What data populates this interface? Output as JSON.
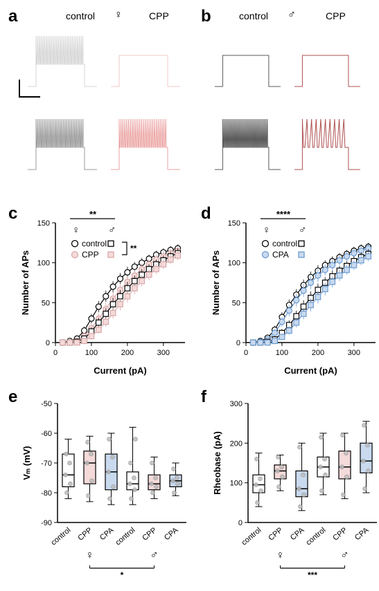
{
  "panels": {
    "a": {
      "label": "a",
      "control_text": "control",
      "cpp_text": "CPP",
      "sex_symbol": "♀"
    },
    "b": {
      "label": "b",
      "control_text": "control",
      "cpp_text": "CPP",
      "sex_symbol": "♂"
    },
    "c": {
      "label": "c",
      "sex_female": "♀",
      "sex_male": "♂",
      "legend_control": "control",
      "legend_cpp": "CPP",
      "sig_top": "**",
      "sig_bracket": "**",
      "xlabel": "Current (pA)",
      "ylabel": "Number of APs",
      "xlim": [
        0,
        360
      ],
      "ylim": [
        0,
        150
      ],
      "xticks": [
        0,
        100,
        200,
        300
      ],
      "yticks": [
        0,
        50,
        100,
        150
      ],
      "x": [
        20,
        40,
        60,
        80,
        100,
        120,
        140,
        160,
        180,
        200,
        220,
        240,
        260,
        280,
        300,
        320,
        340
      ],
      "series": {
        "f_ctrl": {
          "y": [
            0,
            2,
            5,
            15,
            30,
            45,
            58,
            70,
            80,
            88,
            95,
            100,
            105,
            110,
            113,
            116,
            118
          ],
          "err": [
            0,
            1,
            2,
            5,
            6,
            7,
            7,
            7,
            7,
            7,
            6,
            6,
            5,
            5,
            5,
            5,
            5
          ],
          "color": "#000000",
          "fill": "#ffffff",
          "marker": "circle"
        },
        "f_cpp": {
          "y": [
            0,
            0,
            2,
            8,
            18,
            30,
            42,
            55,
            66,
            76,
            84,
            92,
            98,
            104,
            108,
            112,
            115
          ],
          "err": [
            0,
            0,
            1,
            4,
            6,
            7,
            8,
            8,
            8,
            8,
            7,
            7,
            6,
            6,
            6,
            5,
            5
          ],
          "color": "#d8a8a8",
          "fill": "#f5dada",
          "marker": "circle"
        },
        "m_ctrl": {
          "y": [
            0,
            0,
            1,
            5,
            14,
            25,
            36,
            48,
            58,
            68,
            77,
            85,
            92,
            98,
            103,
            108,
            112
          ],
          "err": [
            0,
            0,
            1,
            3,
            5,
            6,
            7,
            8,
            8,
            8,
            7,
            7,
            6,
            6,
            6,
            6,
            6
          ],
          "color": "#000000",
          "fill": "#ffffff",
          "marker": "square"
        },
        "m_cpp": {
          "y": [
            0,
            0,
            0,
            2,
            8,
            16,
            26,
            37,
            48,
            58,
            68,
            77,
            85,
            92,
            98,
            104,
            109
          ],
          "err": [
            0,
            0,
            0,
            2,
            4,
            5,
            6,
            7,
            8,
            8,
            8,
            7,
            7,
            6,
            6,
            6,
            6
          ],
          "color": "#d8a8a8",
          "fill": "#f5dada",
          "marker": "square"
        }
      }
    },
    "d": {
      "label": "d",
      "sex_female": "♀",
      "sex_male": "♂",
      "legend_control": "control",
      "legend_cpa": "CPA",
      "sig_top": "****",
      "xlabel": "Current (pA)",
      "ylabel": "Number of APs",
      "xlim": [
        0,
        360
      ],
      "ylim": [
        0,
        150
      ],
      "xticks": [
        0,
        100,
        200,
        300
      ],
      "yticks": [
        0,
        50,
        100,
        150
      ],
      "x": [
        20,
        40,
        60,
        80,
        100,
        120,
        140,
        160,
        180,
        200,
        220,
        240,
        260,
        280,
        300,
        320,
        340
      ],
      "series": {
        "f_ctrl": {
          "y": [
            0,
            2,
            6,
            16,
            32,
            47,
            60,
            72,
            82,
            90,
            97,
            102,
            107,
            111,
            115,
            118,
            120
          ],
          "err": [
            0,
            1,
            2,
            5,
            6,
            7,
            7,
            7,
            7,
            7,
            6,
            6,
            5,
            5,
            5,
            5,
            5
          ],
          "color": "#000000",
          "fill": "#ffffff",
          "marker": "circle"
        },
        "f_cpa": {
          "y": [
            0,
            1,
            4,
            12,
            26,
            40,
            53,
            65,
            75,
            84,
            91,
            97,
            103,
            108,
            112,
            115,
            118
          ],
          "err": [
            0,
            1,
            2,
            5,
            6,
            7,
            8,
            8,
            8,
            8,
            7,
            7,
            6,
            6,
            6,
            5,
            5
          ],
          "color": "#6b9bd1",
          "fill": "#c9daef",
          "marker": "circle"
        },
        "m_ctrl": {
          "y": [
            0,
            0,
            1,
            4,
            12,
            22,
            33,
            45,
            56,
            66,
            75,
            83,
            90,
            96,
            102,
            107,
            111
          ],
          "err": [
            0,
            0,
            1,
            3,
            5,
            6,
            7,
            8,
            8,
            8,
            7,
            7,
            6,
            6,
            6,
            6,
            6
          ],
          "color": "#000000",
          "fill": "#ffffff",
          "marker": "square"
        },
        "m_cpa": {
          "y": [
            0,
            0,
            0,
            2,
            7,
            15,
            25,
            36,
            47,
            57,
            67,
            76,
            84,
            91,
            97,
            103,
            108
          ],
          "err": [
            0,
            0,
            0,
            2,
            4,
            5,
            6,
            7,
            8,
            8,
            8,
            7,
            7,
            6,
            6,
            6,
            6
          ],
          "color": "#6b9bd1",
          "fill": "#c9daef",
          "marker": "square"
        }
      }
    },
    "e": {
      "label": "e",
      "ylabel": "Vₘ (mV)",
      "ylim": [
        -90,
        -50
      ],
      "yticks": [
        -90,
        -80,
        -70,
        -60,
        -50
      ],
      "groups": [
        "control",
        "CPP",
        "CPA",
        "control",
        "CPP",
        "CPA"
      ],
      "sex_female": "♀",
      "sex_male": "♂",
      "sig": "*",
      "boxes": [
        {
          "min": -82,
          "q1": -78,
          "med": -74,
          "q3": -67,
          "max": -62,
          "color": "#ffffff",
          "pts": [
            -80,
            -77,
            -74,
            -70,
            -67
          ]
        },
        {
          "min": -83,
          "q1": -77,
          "med": -70,
          "q3": -66,
          "max": -61,
          "color": "#f5dada",
          "pts": [
            -81,
            -76,
            -70,
            -67,
            -63
          ]
        },
        {
          "min": -84,
          "q1": -79,
          "med": -73,
          "q3": -67,
          "max": -60,
          "color": "#c9daef",
          "pts": [
            -82,
            -78,
            -73,
            -68,
            -62
          ]
        },
        {
          "min": -84,
          "q1": -79,
          "med": -77,
          "q3": -73,
          "max": -58,
          "color": "#ffffff",
          "pts": [
            -82,
            -79,
            -77,
            -75,
            -70,
            -62
          ]
        },
        {
          "min": -82,
          "q1": -79,
          "med": -77,
          "q3": -74,
          "max": -68,
          "color": "#f5dada",
          "pts": [
            -80,
            -78,
            -77,
            -75,
            -70
          ]
        },
        {
          "min": -81,
          "q1": -78,
          "med": -76,
          "q3": -74,
          "max": -70,
          "color": "#c9daef",
          "pts": [
            -80,
            -77,
            -76,
            -75,
            -72
          ]
        }
      ]
    },
    "f": {
      "label": "f",
      "ylabel": "Rheobase (pA)",
      "ylim": [
        0,
        300
      ],
      "yticks": [
        0,
        100,
        200,
        300
      ],
      "groups": [
        "control",
        "CPP",
        "CPA",
        "control",
        "CPP",
        "CPA"
      ],
      "sex_female": "♀",
      "sex_male": "♂",
      "sig": "***",
      "boxes": [
        {
          "min": 40,
          "q1": 75,
          "med": 95,
          "q3": 120,
          "max": 175,
          "color": "#ffffff",
          "pts": [
            50,
            80,
            95,
            110,
            160
          ]
        },
        {
          "min": 80,
          "q1": 110,
          "med": 130,
          "q3": 145,
          "max": 170,
          "color": "#f5dada",
          "pts": [
            90,
            115,
            130,
            140,
            165
          ]
        },
        {
          "min": 30,
          "q1": 65,
          "med": 85,
          "q3": 130,
          "max": 200,
          "color": "#c9daef",
          "pts": [
            40,
            70,
            85,
            120,
            190
          ]
        },
        {
          "min": 70,
          "q1": 115,
          "med": 140,
          "q3": 165,
          "max": 225,
          "color": "#ffffff",
          "pts": [
            80,
            120,
            140,
            160,
            215
          ]
        },
        {
          "min": 60,
          "q1": 110,
          "med": 140,
          "q3": 180,
          "max": 225,
          "color": "#f5dada",
          "pts": [
            70,
            115,
            140,
            175,
            220
          ]
        },
        {
          "min": 75,
          "q1": 125,
          "med": 155,
          "q3": 200,
          "max": 255,
          "color": "#c9daef",
          "pts": [
            85,
            130,
            155,
            195,
            245
          ]
        }
      ]
    }
  },
  "colors": {
    "gray_light": "#cccccc",
    "gray_dark": "#888888",
    "pink_light": "#f0c0c0",
    "pink_dark": "#e89090",
    "black": "#3a3a3a",
    "darkred": "#a03030"
  },
  "style": {
    "marker_size": 4.5,
    "line_width": 1.2,
    "axis_fontsize": 13,
    "tick_fontsize": 11,
    "panel_label_fontsize": 24
  }
}
